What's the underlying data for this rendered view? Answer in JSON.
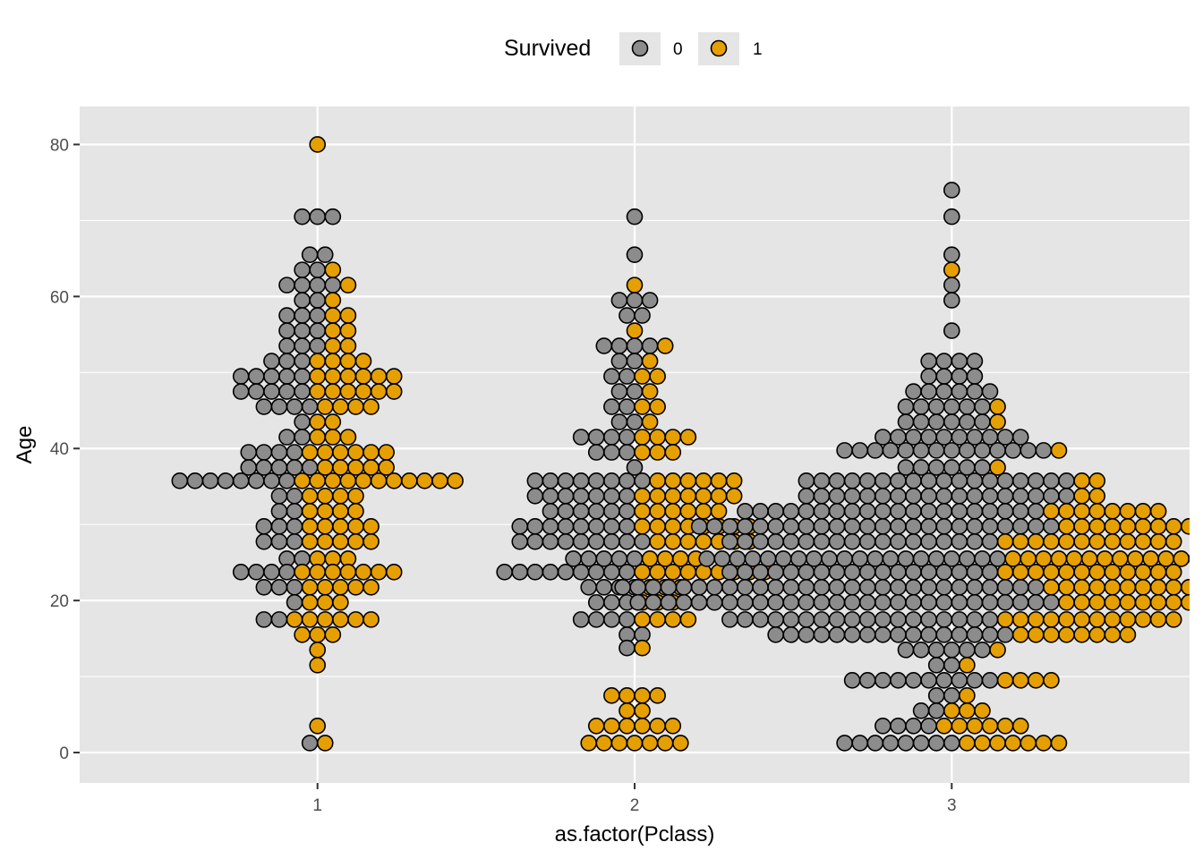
{
  "chart_data": {
    "type": "scatter",
    "subtype": "beeswarm / dotplot",
    "xlabel": "as.factor(Pclass)",
    "ylabel": "Age",
    "categories": [
      "1",
      "2",
      "3"
    ],
    "ylim": [
      -4,
      85
    ],
    "y_ticks": [
      0,
      20,
      40,
      60,
      80
    ],
    "grid": true,
    "legend": {
      "title": "Survived",
      "position": "top",
      "entries": [
        {
          "label": "0",
          "color": "#8c8c8c"
        },
        {
          "label": "1",
          "color": "#e69f00"
        }
      ]
    },
    "colors": {
      "0": "#8c8c8c",
      "1": "#e69f00",
      "panel": "#e5e5e5",
      "grid": "#ffffff"
    },
    "note": "Ages binned at ~2-year width; each row lists [age, count survived=0 left of centre, count survived=1 right of centre]",
    "series": [
      {
        "category": "1",
        "rows": [
          [
            80,
            0,
            1
          ],
          [
            70.5,
            3,
            0
          ],
          [
            65.5,
            2,
            0
          ],
          [
            63.5,
            2,
            1
          ],
          [
            61.5,
            4,
            1
          ],
          [
            59.5,
            2,
            1
          ],
          [
            57.5,
            3,
            2
          ],
          [
            55.5,
            3,
            2
          ],
          [
            53.5,
            3,
            2
          ],
          [
            51.5,
            3,
            4
          ],
          [
            49.5,
            5,
            6
          ],
          [
            47.5,
            5,
            6
          ],
          [
            45.5,
            4,
            4
          ],
          [
            43.5,
            1,
            2
          ],
          [
            41.5,
            2,
            3
          ],
          [
            39.5,
            4,
            6
          ],
          [
            37.5,
            5,
            5
          ],
          [
            35.75,
            8,
            11
          ],
          [
            33.75,
            2,
            4
          ],
          [
            31.75,
            2,
            4
          ],
          [
            29.75,
            3,
            5
          ],
          [
            27.75,
            3,
            5
          ],
          [
            25.5,
            2,
            3
          ],
          [
            23.75,
            4,
            7
          ],
          [
            21.75,
            3,
            5
          ],
          [
            19.75,
            1,
            3
          ],
          [
            17.5,
            2,
            6
          ],
          [
            15.5,
            0,
            3
          ],
          [
            13.5,
            0,
            1
          ],
          [
            11.5,
            0,
            1
          ],
          [
            3.5,
            0,
            1
          ],
          [
            1.25,
            1,
            1
          ]
        ]
      },
      {
        "category": "2",
        "rows": [
          [
            70.5,
            1,
            0
          ],
          [
            65.5,
            1,
            0
          ],
          [
            61.5,
            0,
            1
          ],
          [
            59.5,
            3,
            0
          ],
          [
            57.5,
            2,
            0
          ],
          [
            55.5,
            0,
            1
          ],
          [
            53.5,
            4,
            1
          ],
          [
            51.5,
            2,
            1
          ],
          [
            49.5,
            2,
            2
          ],
          [
            47.5,
            2,
            1
          ],
          [
            45.5,
            2,
            2
          ],
          [
            43.5,
            2,
            1
          ],
          [
            41.5,
            4,
            4
          ],
          [
            39.5,
            3,
            3
          ],
          [
            37.5,
            1,
            0
          ],
          [
            35.75,
            8,
            6
          ],
          [
            33.75,
            7,
            7
          ],
          [
            31.75,
            6,
            6
          ],
          [
            29.75,
            8,
            8
          ],
          [
            27.75,
            9,
            7
          ],
          [
            25.5,
            5,
            4
          ],
          [
            23.75,
            9,
            9
          ],
          [
            21.75,
            4,
            3
          ],
          [
            19.75,
            3,
            3
          ],
          [
            17.5,
            4,
            4
          ],
          [
            15.5,
            2,
            0
          ],
          [
            13.75,
            1,
            1
          ],
          [
            7.5,
            0,
            4
          ],
          [
            5.5,
            0,
            2
          ],
          [
            3.5,
            0,
            6
          ],
          [
            1.25,
            0,
            7
          ]
        ]
      },
      {
        "category": "3",
        "rows": [
          [
            74,
            1,
            0
          ],
          [
            70.5,
            1,
            0
          ],
          [
            65.5,
            1,
            0
          ],
          [
            63.5,
            0,
            1
          ],
          [
            61.5,
            1,
            0
          ],
          [
            59.5,
            1,
            0
          ],
          [
            55.5,
            1,
            0
          ],
          [
            51.5,
            4,
            0
          ],
          [
            49.5,
            4,
            0
          ],
          [
            47.5,
            6,
            0
          ],
          [
            45.5,
            6,
            1
          ],
          [
            43.5,
            6,
            1
          ],
          [
            41.5,
            10,
            0
          ],
          [
            39.75,
            14,
            1
          ],
          [
            37.5,
            6,
            1
          ],
          [
            35.75,
            18,
            2
          ],
          [
            33.75,
            18,
            2
          ],
          [
            31.75,
            20,
            8
          ],
          [
            29.75,
            24,
            10
          ],
          [
            27.75,
            18,
            12
          ],
          [
            25.5,
            20,
            13
          ],
          [
            23.75,
            18,
            12
          ],
          [
            21.75,
            28,
            16
          ],
          [
            19.75,
            28,
            14
          ],
          [
            17.5,
            18,
            12
          ],
          [
            15.5,
            16,
            8
          ],
          [
            13.5,
            6,
            1
          ],
          [
            11.5,
            2,
            1
          ],
          [
            9.5,
            10,
            4
          ],
          [
            7.5,
            2,
            1
          ],
          [
            5.5,
            2,
            3
          ],
          [
            3.5,
            4,
            6
          ],
          [
            1.25,
            8,
            7
          ]
        ]
      }
    ]
  }
}
